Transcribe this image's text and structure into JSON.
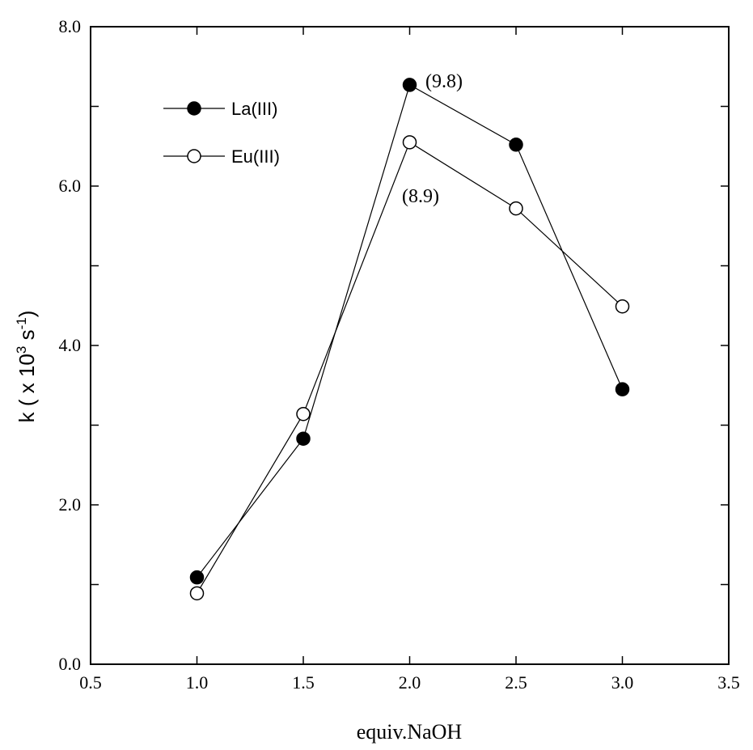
{
  "chart_data": {
    "type": "line",
    "xlabel": "equiv.NaOH",
    "ylabel_main": "k ( x 10",
    "ylabel_exp": "3",
    "ylabel_unit": " s",
    "ylabel_unit_exp": "-1",
    "ylabel_end": ")",
    "xlim": [
      0.5,
      3.5
    ],
    "ylim": [
      0.0,
      8.0
    ],
    "x_ticks": [
      0.5,
      1.0,
      1.5,
      2.0,
      2.5,
      3.0,
      3.5
    ],
    "x_tick_labels": [
      "0.5",
      "1.0",
      "1.5",
      "2.0",
      "2.5",
      "3.0",
      "3.5"
    ],
    "y_ticks_labeled": [
      0.0,
      2.0,
      4.0,
      6.0,
      8.0
    ],
    "y_tick_labels": [
      "0.0",
      "2.0",
      "4.0",
      "6.0",
      "8.0"
    ],
    "y_ticks_minor": [
      1.0,
      3.0,
      5.0,
      7.0
    ],
    "grid": false,
    "legend_position": "top-left",
    "series": [
      {
        "name": "La(III)",
        "marker": "filled-circle",
        "x": [
          1.0,
          1.5,
          2.0,
          2.5,
          3.0
        ],
        "y": [
          1.09,
          2.83,
          7.27,
          6.52,
          3.45
        ]
      },
      {
        "name": "Eu(III)",
        "marker": "open-circle",
        "x": [
          1.0,
          1.5,
          2.0,
          2.5,
          3.0
        ],
        "y": [
          0.89,
          3.14,
          6.55,
          5.72,
          4.49
        ]
      }
    ],
    "annotations": [
      {
        "text": "(9.8)",
        "series": "La(III)",
        "x": 2.0,
        "y": 7.27
      },
      {
        "text": "(8.9)",
        "series": "Eu(III)",
        "x": 2.0,
        "y": 6.55
      }
    ],
    "colors": {
      "line": "#000000",
      "marker_fill": "#000000",
      "marker_open_fill": "#ffffff"
    }
  }
}
